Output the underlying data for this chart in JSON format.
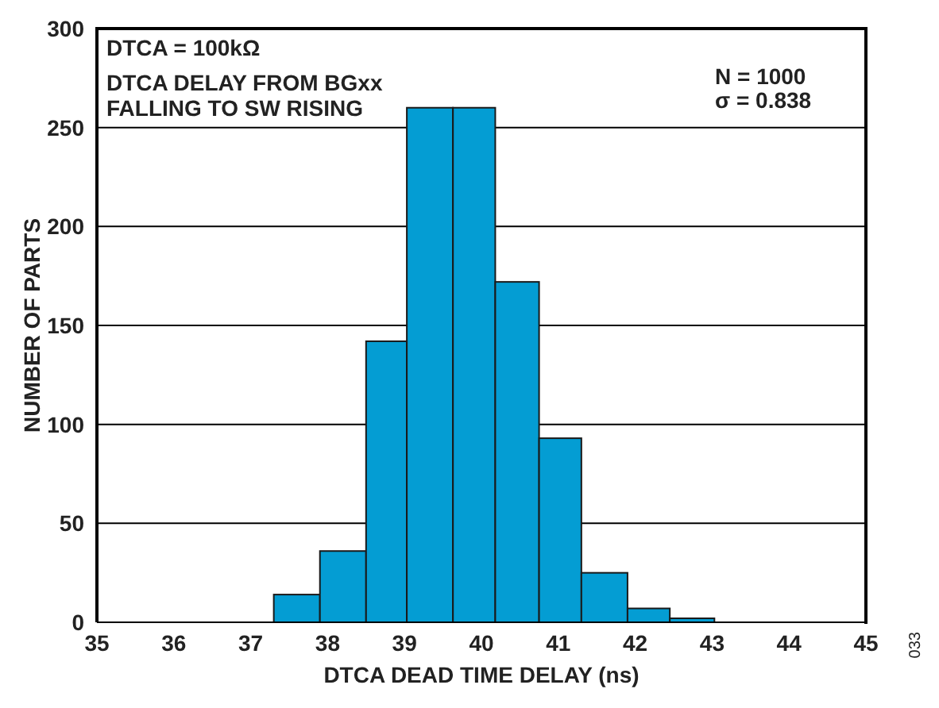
{
  "chart_data": {
    "type": "histogram",
    "xlabel": "DTCA DEAD TIME DELAY (ns)",
    "ylabel": "NUMBER OF PARTS",
    "bins": [
      37.3,
      37.9,
      38.5,
      39.03,
      39.63,
      40.18,
      40.75,
      41.3,
      41.9,
      42.45,
      43.03
    ],
    "values": [
      14,
      36,
      142,
      260,
      260,
      172,
      93,
      25,
      7,
      2
    ],
    "color": "#049dd3",
    "xlim": [
      35,
      45
    ],
    "xticks": [
      35,
      36,
      37,
      38,
      39,
      40,
      41,
      42,
      43,
      44,
      45
    ],
    "ylim": [
      0,
      300
    ],
    "yticks": [
      0,
      50,
      100,
      150,
      200,
      250,
      300
    ],
    "grid": "y",
    "annotations": [
      "DTCA = 100kΩ",
      "DTCA DELAY FROM BGxx\nFALLING TO SW RISING",
      "N = 1000",
      "σ = 0.838",
      "033"
    ]
  }
}
